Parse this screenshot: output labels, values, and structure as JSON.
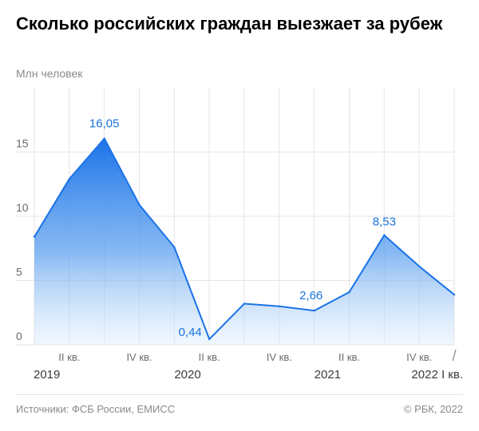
{
  "header": {
    "title": "Сколько российских граждан выезжает за рубеж",
    "unit": "Млн человек"
  },
  "footer": {
    "source": "Источники: ФСБ России, ЕМИСС",
    "copyright": "© РБК, 2022"
  },
  "colors": {
    "line": "#1a73e8",
    "label": "#1a73d9",
    "grid": "#e6e6e6"
  },
  "chart_data": {
    "type": "area",
    "title": "Сколько российских граждан выезжает за рубеж",
    "ylabel": "Млн человек",
    "ylim": [
      0,
      18
    ],
    "yticks": [
      0,
      5,
      10,
      15
    ],
    "grid": true,
    "x": [
      "2019 I кв.",
      "2019 II кв.",
      "2019 III кв.",
      "2019 IV кв.",
      "2020 I кв.",
      "2020 II кв.",
      "2020 III кв.",
      "2020 IV кв.",
      "2021 I кв.",
      "2021 II кв.",
      "2021 III кв.",
      "2021 IV кв.",
      "2022 I кв."
    ],
    "series": [
      {
        "values": [
          8.4,
          12.9,
          16.05,
          10.9,
          7.6,
          0.44,
          3.2,
          3.0,
          2.66,
          4.1,
          8.53,
          6.1,
          3.9
        ]
      }
    ],
    "data_labels": [
      {
        "index": 2,
        "text": "16,05"
      },
      {
        "index": 5,
        "text": "0,44"
      },
      {
        "index": 8,
        "text": "2,66"
      },
      {
        "index": 10,
        "text": "8,53"
      }
    ],
    "quarter_ticks": [
      {
        "index": 1,
        "label": "II кв."
      },
      {
        "index": 3,
        "label": "IV кв."
      },
      {
        "index": 5,
        "label": "II кв."
      },
      {
        "index": 7,
        "label": "IV кв."
      },
      {
        "index": 9,
        "label": "II кв."
      },
      {
        "index": 11,
        "label": "IV кв."
      }
    ],
    "year_labels": [
      {
        "index": 0,
        "label": "2019"
      },
      {
        "index": 4,
        "label": "2020"
      },
      {
        "index": 8,
        "label": "2021"
      },
      {
        "index": 12,
        "label": "2022 I кв."
      }
    ]
  }
}
